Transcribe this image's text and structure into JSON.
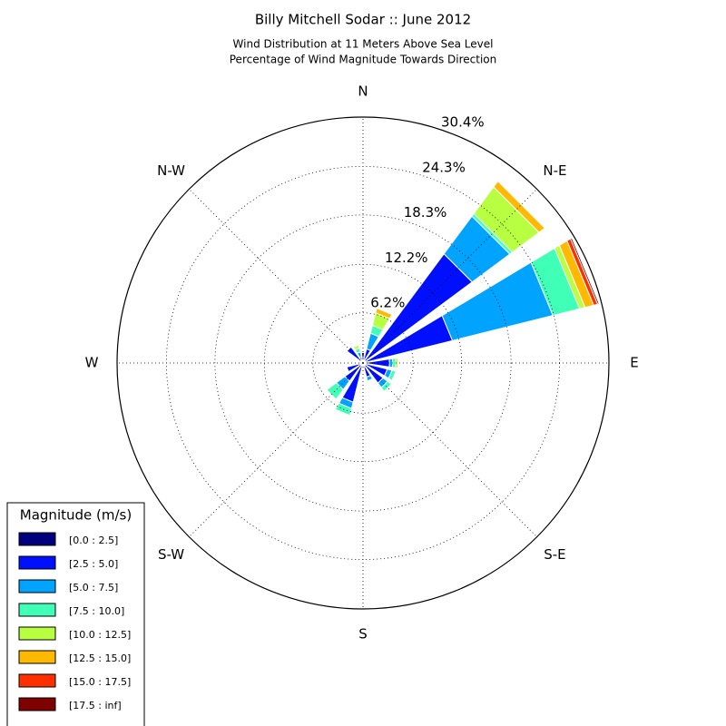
{
  "chart_data": {
    "type": "windrose",
    "title": "Billy Mitchell Sodar :: June 2012",
    "subtitle": [
      "Wind Distribution at 11 Meters Above Sea Level",
      "Percentage of Wind Magnitude Towards Direction"
    ],
    "angle_labels": [
      "N",
      "N-E",
      "E",
      "S-E",
      "S",
      "S-W",
      "W",
      "N-W"
    ],
    "rlim": [
      0,
      30.4
    ],
    "rticks": [
      {
        "value": 6.2,
        "label": "6.2%"
      },
      {
        "value": 12.2,
        "label": "12.2%"
      },
      {
        "value": 18.3,
        "label": "18.3%"
      },
      {
        "value": 24.3,
        "label": "24.3%"
      },
      {
        "value": 30.4,
        "label": "30.4%"
      }
    ],
    "grid": true,
    "legend": {
      "title": "Magnitude (m/s)",
      "position": "lower left"
    },
    "series": [
      {
        "name": "[0.0 : 2.5]",
        "color": "#00007f",
        "values": [
          0.3,
          0.3,
          0.3,
          0.3,
          0.3,
          0.3,
          0.3,
          0.3,
          0.2,
          0.3,
          0.3,
          0.3,
          0.2,
          0.2,
          0.3,
          0.2
        ]
      },
      {
        "name": "[2.5 : 5.0]",
        "color": "#0010ff",
        "values": [
          1.0,
          1.5,
          16.5,
          11.1,
          3.0,
          2.8,
          2.8,
          1.5,
          0.3,
          4.7,
          2.5,
          1.8,
          0.3,
          0.3,
          2.2,
          0.6
        ]
      },
      {
        "name": "[5.0 : 7.5]",
        "color": "#00a4ff",
        "values": [
          0,
          2.0,
          5.8,
          12.8,
          0.4,
          0.6,
          0.7,
          0.5,
          0,
          0.8,
          1.3,
          0,
          0,
          0,
          0,
          0.6
        ]
      },
      {
        "name": "[7.5 : 10.0]",
        "color": "#40ffb7",
        "values": [
          0,
          1.0,
          0.4,
          3.4,
          0.4,
          0.5,
          0.6,
          0,
          0,
          0.9,
          1.5,
          0,
          0,
          0,
          0,
          0.5
        ]
      },
      {
        "name": "[10.0 : 12.5]",
        "color": "#b7ff40",
        "values": [
          0,
          1.6,
          4.1,
          0.7,
          0.3,
          0,
          0,
          0,
          0,
          0,
          0,
          0,
          0,
          0,
          0,
          0.4
        ]
      },
      {
        "name": "[12.5 : 15.0]",
        "color": "#ffb900",
        "values": [
          0,
          0.6,
          0.9,
          1.1,
          0,
          0,
          0,
          0,
          0,
          0,
          0,
          0,
          0,
          0,
          0,
          0
        ]
      },
      {
        "name": "[15.0 : 17.5]",
        "color": "#ff3000",
        "values": [
          0,
          0,
          0,
          0.5,
          0,
          0,
          0,
          0,
          0,
          0,
          0,
          0,
          0,
          0,
          0,
          0
        ]
      },
      {
        "name": "[17.5 : inf]",
        "color": "#7f0000",
        "values": [
          0,
          0,
          0,
          0.2,
          0,
          0,
          0,
          0,
          0,
          0,
          0,
          0,
          0,
          0,
          0,
          0
        ]
      }
    ]
  }
}
